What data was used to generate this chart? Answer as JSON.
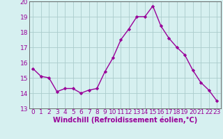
{
  "x": [
    0,
    1,
    2,
    3,
    4,
    5,
    6,
    7,
    8,
    9,
    10,
    11,
    12,
    13,
    14,
    15,
    16,
    17,
    18,
    19,
    20,
    21,
    22,
    23
  ],
  "y": [
    15.6,
    15.1,
    15.0,
    14.1,
    14.3,
    14.3,
    14.0,
    14.2,
    14.3,
    15.4,
    16.3,
    17.5,
    18.2,
    19.0,
    19.0,
    19.7,
    18.4,
    17.6,
    17.0,
    16.5,
    15.5,
    14.7,
    14.2,
    13.5
  ],
  "line_color": "#990099",
  "marker": "D",
  "marker_size": 2.2,
  "bg_color": "#d6f0f0",
  "grid_color": "#aacccc",
  "xlabel": "Windchill (Refroidissement éolien,°C)",
  "xlabel_fontsize": 7,
  "ylim": [
    13,
    20
  ],
  "xlim": [
    -0.5,
    23.5
  ],
  "yticks": [
    13,
    14,
    15,
    16,
    17,
    18,
    19,
    20
  ],
  "xticks": [
    0,
    1,
    2,
    3,
    4,
    5,
    6,
    7,
    8,
    9,
    10,
    11,
    12,
    13,
    14,
    15,
    16,
    17,
    18,
    19,
    20,
    21,
    22,
    23
  ],
  "tick_color": "#990099",
  "tick_fontsize": 6.5,
  "spine_color": "#555555",
  "line_width": 1.0
}
